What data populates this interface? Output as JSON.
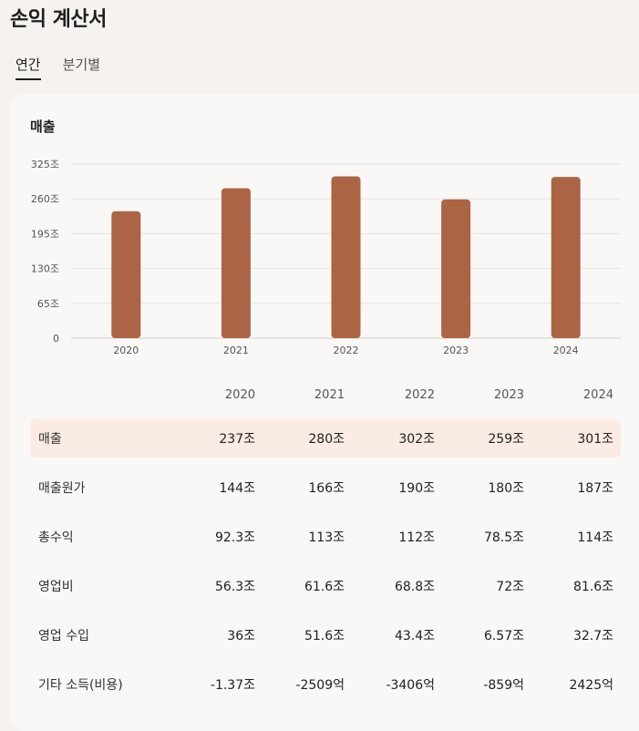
{
  "page": {
    "title": "손익 계산서"
  },
  "tabs": [
    {
      "label": "연간",
      "active": true
    },
    {
      "label": "분기별",
      "active": false
    }
  ],
  "section": {
    "title": "매출"
  },
  "colors": {
    "bar": "#ab6544",
    "highlight": "#fbebe5",
    "grid": "#e6e3e0"
  },
  "chart_data": {
    "type": "bar",
    "categories": [
      "2020",
      "2021",
      "2022",
      "2023",
      "2024"
    ],
    "values": [
      237,
      280,
      302,
      259,
      301
    ],
    "yticks": [
      "0",
      "65조",
      "130조",
      "195조",
      "260조",
      "325조"
    ],
    "ylim": [
      0,
      325
    ],
    "grid": true
  },
  "table": {
    "years": [
      "2020",
      "2021",
      "2022",
      "2023",
      "2024"
    ],
    "rows": [
      {
        "label": "매출",
        "values": [
          "237조",
          "280조",
          "302조",
          "259조",
          "301조"
        ],
        "highlight": true
      },
      {
        "label": "매출원가",
        "values": [
          "144조",
          "166조",
          "190조",
          "180조",
          "187조"
        ]
      },
      {
        "label": "총수익",
        "values": [
          "92.3조",
          "113조",
          "112조",
          "78.5조",
          "114조"
        ]
      },
      {
        "label": "영업비",
        "values": [
          "56.3조",
          "61.6조",
          "68.8조",
          "72조",
          "81.6조"
        ]
      },
      {
        "label": "영업 수입",
        "values": [
          "36조",
          "51.6조",
          "43.4조",
          "6.57조",
          "32.7조"
        ]
      },
      {
        "label": "기타 소득(비용)",
        "values": [
          "-1.37조",
          "-2509억",
          "-3406억",
          "-859억",
          "2425억"
        ]
      }
    ]
  }
}
